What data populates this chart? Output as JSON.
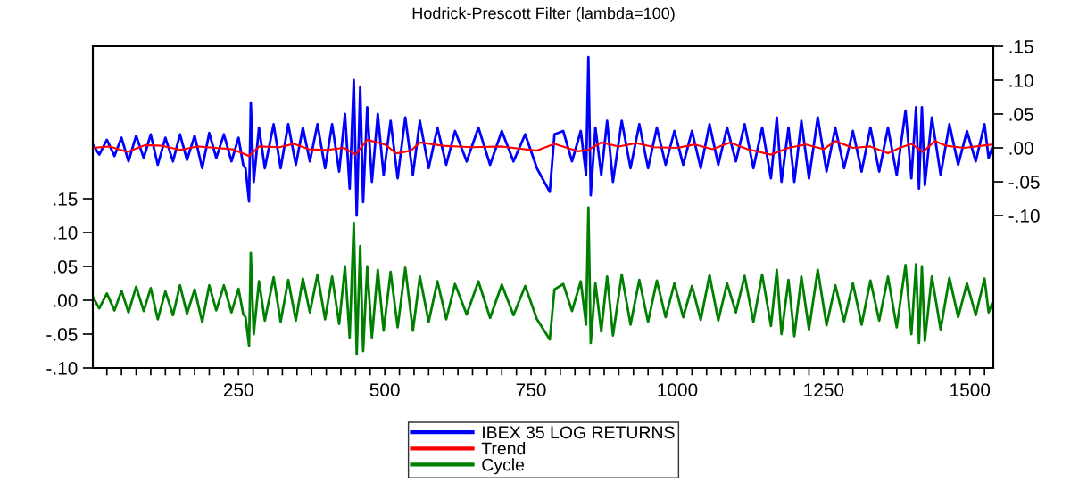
{
  "chart_data": {
    "type": "line",
    "title": "Hodrick-Prescott Filter (lambda=100)",
    "xlim": [
      1,
      1540
    ],
    "xticks": [
      {
        "value": 25,
        "label": null
      },
      {
        "value": 50,
        "label": null
      },
      {
        "value": 75,
        "label": null
      },
      {
        "value": 100,
        "label": null
      },
      {
        "value": 125,
        "label": null
      },
      {
        "value": 150,
        "label": null
      },
      {
        "value": 175,
        "label": null
      },
      {
        "value": 200,
        "label": null
      },
      {
        "value": 225,
        "label": null
      },
      250,
      {
        "value": 275,
        "label": null
      },
      {
        "value": 300,
        "label": null
      },
      {
        "value": 325,
        "label": null
      },
      {
        "value": 350,
        "label": null
      },
      {
        "value": 375,
        "label": null
      },
      {
        "value": 400,
        "label": null
      },
      {
        "value": 425,
        "label": null
      },
      {
        "value": 450,
        "label": null
      },
      {
        "value": 475,
        "label": null
      },
      500,
      {
        "value": 525,
        "label": null
      },
      {
        "value": 550,
        "label": null
      },
      {
        "value": 575,
        "label": null
      },
      {
        "value": 600,
        "label": null
      },
      {
        "value": 625,
        "label": null
      },
      {
        "value": 650,
        "label": null
      },
      {
        "value": 675,
        "label": null
      },
      {
        "value": 700,
        "label": null
      },
      {
        "value": 725,
        "label": null
      },
      750,
      {
        "value": 775,
        "label": null
      },
      {
        "value": 800,
        "label": null
      },
      {
        "value": 825,
        "label": null
      },
      {
        "value": 850,
        "label": null
      },
      {
        "value": 875,
        "label": null
      },
      {
        "value": 900,
        "label": null
      },
      {
        "value": 925,
        "label": null
      },
      {
        "value": 950,
        "label": null
      },
      {
        "value": 975,
        "label": null
      },
      1000,
      {
        "value": 1025,
        "label": null
      },
      {
        "value": 1050,
        "label": null
      },
      {
        "value": 1075,
        "label": null
      },
      {
        "value": 1100,
        "label": null
      },
      {
        "value": 1125,
        "label": null
      },
      {
        "value": 1150,
        "label": null
      },
      {
        "value": 1175,
        "label": null
      },
      {
        "value": 1200,
        "label": null
      },
      {
        "value": 1225,
        "label": null
      },
      1250,
      {
        "value": 1275,
        "label": null
      },
      {
        "value": 1300,
        "label": null
      },
      {
        "value": 1325,
        "label": null
      },
      {
        "value": 1350,
        "label": null
      },
      {
        "value": 1375,
        "label": null
      },
      {
        "value": 1400,
        "label": null
      },
      {
        "value": 1425,
        "label": null
      },
      {
        "value": 1450,
        "label": null
      },
      {
        "value": 1475,
        "label": null
      },
      1500,
      {
        "value": 1525,
        "label": null
      }
    ],
    "ylim": [
      -0.1,
      0.375
    ],
    "yticks": [
      {
        "value": -0.1,
        "label": "-.10"
      },
      {
        "value": -0.05,
        "label": "-.05"
      },
      {
        "value": 0,
        "label": ".00"
      },
      {
        "value": 0.05,
        "label": ".05"
      },
      {
        "value": 0.1,
        "label": ".10"
      },
      {
        "value": 0.15,
        "label": ".15"
      }
    ],
    "y2lim": [
      -0.325,
      0.15
    ],
    "y2ticks": [
      {
        "value": -0.1,
        "label": "-.10"
      },
      {
        "value": -0.05,
        "label": "-.05"
      },
      {
        "value": 0,
        "label": ".00"
      },
      {
        "value": 0.05,
        "label": ".05"
      },
      {
        "value": 0.1,
        "label": ".10"
      },
      {
        "value": 0.15,
        "label": ".15"
      }
    ],
    "legend": "bottom",
    "series": [
      {
        "name": "IBEX 35 LOG RETURNS",
        "color": "#0000ff",
        "axis": "y2",
        "x": [
          1,
          12,
          25,
          38,
          50,
          62,
          75,
          88,
          100,
          112,
          125,
          138,
          150,
          162,
          175,
          188,
          200,
          212,
          225,
          238,
          250,
          258,
          262,
          268,
          271,
          276,
          285,
          295,
          310,
          322,
          335,
          348,
          360,
          372,
          385,
          398,
          410,
          422,
          432,
          440,
          447,
          452,
          458,
          463,
          470,
          478,
          488,
          498,
          510,
          522,
          535,
          548,
          560,
          575,
          590,
          605,
          620,
          640,
          660,
          680,
          700,
          720,
          740,
          760,
          782,
          790,
          805,
          820,
          835,
          844,
          848,
          852,
          860,
          870,
          880,
          890,
          905,
          920,
          935,
          950,
          965,
          980,
          995,
          1010,
          1025,
          1040,
          1055,
          1070,
          1085,
          1100,
          1115,
          1130,
          1145,
          1160,
          1170,
          1178,
          1190,
          1200,
          1212,
          1225,
          1240,
          1255,
          1270,
          1285,
          1300,
          1315,
          1330,
          1345,
          1360,
          1375,
          1390,
          1400,
          1408,
          1413,
          1418,
          1423,
          1435,
          1450,
          1465,
          1480,
          1495,
          1510,
          1525,
          1532,
          1540
        ],
        "values": [
          0.005,
          -0.01,
          0.012,
          -0.012,
          0.015,
          -0.02,
          0.018,
          -0.015,
          0.02,
          -0.025,
          0.015,
          -0.02,
          0.02,
          -0.018,
          0.018,
          -0.03,
          0.022,
          -0.015,
          0.02,
          -0.02,
          0.015,
          -0.025,
          -0.03,
          -0.079,
          0.067,
          -0.05,
          0.03,
          -0.03,
          0.035,
          -0.03,
          0.035,
          -0.025,
          0.03,
          -0.02,
          0.035,
          -0.03,
          0.035,
          -0.035,
          0.05,
          -0.06,
          0.1,
          -0.1,
          0.09,
          -0.08,
          0.06,
          -0.05,
          0.05,
          -0.04,
          0.04,
          -0.045,
          0.045,
          -0.04,
          0.04,
          -0.03,
          0.03,
          -0.025,
          0.025,
          -0.02,
          0.03,
          -0.025,
          0.025,
          -0.02,
          0.02,
          -0.03,
          -0.065,
          0.02,
          0.025,
          -0.02,
          0.025,
          -0.04,
          0.134,
          -0.07,
          0.03,
          -0.04,
          0.04,
          -0.05,
          0.04,
          -0.03,
          0.035,
          -0.03,
          0.03,
          -0.025,
          0.025,
          -0.025,
          0.025,
          -0.03,
          0.035,
          -0.025,
          0.03,
          -0.02,
          0.035,
          -0.03,
          0.03,
          -0.045,
          0.045,
          -0.05,
          0.03,
          -0.05,
          0.04,
          -0.045,
          0.045,
          -0.035,
          0.03,
          -0.03,
          0.025,
          -0.035,
          0.03,
          -0.035,
          0.03,
          -0.04,
          0.055,
          -0.045,
          0.06,
          -0.06,
          0.06,
          -0.055,
          0.045,
          -0.04,
          0.035,
          -0.025,
          0.025,
          -0.02,
          0.035,
          -0.015,
          0.005
        ]
      },
      {
        "name": "Trend",
        "color": "#ff0000",
        "axis": "y2",
        "x": [
          1,
          30,
          60,
          90,
          120,
          150,
          180,
          210,
          240,
          268,
          285,
          320,
          345,
          370,
          400,
          430,
          450,
          470,
          500,
          520,
          545,
          560,
          600,
          650,
          700,
          760,
          790,
          830,
          848,
          870,
          900,
          930,
          960,
          1000,
          1030,
          1060,
          1090,
          1120,
          1160,
          1190,
          1220,
          1250,
          1270,
          1300,
          1330,
          1360,
          1380,
          1400,
          1420,
          1440,
          1460,
          1490,
          1520,
          1540
        ],
        "values": [
          0.0,
          0.002,
          -0.006,
          0.004,
          0.003,
          -0.003,
          0.002,
          0.0,
          -0.002,
          -0.012,
          0.002,
          0.001,
          0.006,
          -0.002,
          -0.003,
          0.0,
          -0.01,
          0.012,
          0.005,
          -0.008,
          -0.004,
          0.008,
          0.003,
          0.001,
          0.002,
          -0.004,
          0.006,
          -0.005,
          -0.003,
          0.008,
          0.002,
          0.007,
          0.001,
          0.0,
          0.005,
          -0.002,
          0.008,
          -0.002,
          -0.01,
          0.0,
          0.005,
          -0.002,
          0.01,
          0.0,
          0.002,
          -0.008,
          0.0,
          0.006,
          -0.006,
          0.01,
          0.003,
          0.0,
          0.003,
          0.005
        ]
      },
      {
        "name": "Cycle",
        "color": "#008000",
        "x": [
          1,
          12,
          25,
          38,
          50,
          62,
          75,
          88,
          100,
          112,
          125,
          138,
          150,
          162,
          175,
          188,
          200,
          212,
          225,
          238,
          250,
          258,
          262,
          268,
          271,
          276,
          285,
          295,
          310,
          322,
          335,
          348,
          360,
          372,
          385,
          398,
          410,
          422,
          432,
          440,
          447,
          452,
          458,
          463,
          470,
          478,
          488,
          498,
          510,
          522,
          535,
          548,
          560,
          575,
          590,
          605,
          620,
          640,
          660,
          680,
          700,
          720,
          740,
          760,
          782,
          790,
          805,
          820,
          835,
          844,
          848,
          852,
          860,
          870,
          880,
          890,
          905,
          920,
          935,
          950,
          965,
          980,
          995,
          1010,
          1025,
          1040,
          1055,
          1070,
          1085,
          1100,
          1115,
          1130,
          1145,
          1160,
          1170,
          1178,
          1190,
          1200,
          1212,
          1225,
          1240,
          1255,
          1270,
          1285,
          1300,
          1315,
          1330,
          1345,
          1360,
          1375,
          1390,
          1400,
          1408,
          1413,
          1418,
          1423,
          1435,
          1450,
          1465,
          1480,
          1495,
          1510,
          1525,
          1532,
          1540
        ],
        "values": [
          0.005,
          -0.012,
          0.01,
          -0.015,
          0.014,
          -0.018,
          0.02,
          -0.016,
          0.018,
          -0.028,
          0.013,
          -0.022,
          0.022,
          -0.02,
          0.016,
          -0.032,
          0.022,
          -0.015,
          0.022,
          -0.018,
          0.017,
          -0.02,
          -0.025,
          -0.067,
          0.07,
          -0.05,
          0.028,
          -0.03,
          0.034,
          -0.032,
          0.03,
          -0.03,
          0.032,
          -0.018,
          0.038,
          -0.028,
          0.035,
          -0.035,
          0.05,
          -0.055,
          0.114,
          -0.08,
          0.08,
          -0.075,
          0.05,
          -0.055,
          0.045,
          -0.045,
          0.042,
          -0.04,
          0.048,
          -0.045,
          0.035,
          -0.032,
          0.028,
          -0.028,
          0.024,
          -0.021,
          0.028,
          -0.026,
          0.023,
          -0.022,
          0.021,
          -0.028,
          -0.058,
          0.016,
          0.024,
          -0.016,
          0.028,
          -0.036,
          0.137,
          -0.063,
          0.025,
          -0.046,
          0.035,
          -0.052,
          0.038,
          -0.036,
          0.03,
          -0.032,
          0.029,
          -0.025,
          0.025,
          -0.025,
          0.021,
          -0.029,
          0.037,
          -0.03,
          0.025,
          -0.018,
          0.036,
          -0.032,
          0.038,
          -0.038,
          0.045,
          -0.05,
          0.03,
          -0.053,
          0.035,
          -0.043,
          0.045,
          -0.037,
          0.022,
          -0.031,
          0.025,
          -0.036,
          0.029,
          -0.03,
          0.035,
          -0.04,
          0.052,
          -0.05,
          0.053,
          -0.063,
          0.05,
          -0.06,
          0.035,
          -0.043,
          0.033,
          -0.025,
          0.025,
          -0.022,
          0.032,
          -0.018,
          0.0
        ]
      }
    ]
  }
}
